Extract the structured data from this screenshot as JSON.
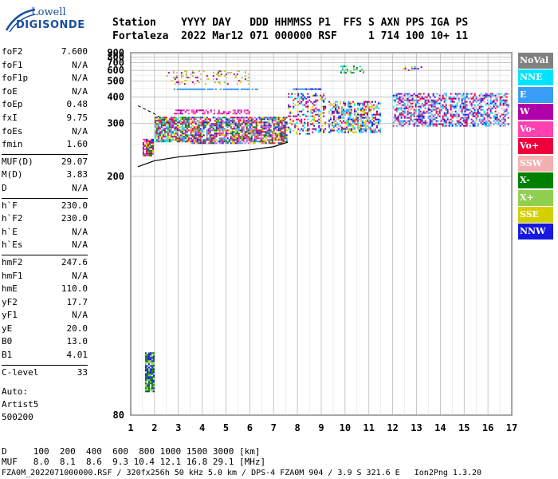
{
  "logo": {
    "line1": "Lowell",
    "line2": "DIGISONDE"
  },
  "header": {
    "cols": [
      "Station",
      "YYYY",
      "DAY",
      "DDD",
      "HHMMSS",
      "P1",
      "FFS",
      "S",
      "AXN",
      "PPS",
      "IGA",
      "PS"
    ],
    "vals": [
      "Fortaleza",
      "2022",
      "Mar12",
      "071",
      "000000",
      "RSF",
      "",
      "1",
      "714",
      "100",
      "10+",
      "11"
    ]
  },
  "params": {
    "group1": [
      {
        "k": "foF2",
        "v": "7.600"
      },
      {
        "k": "foF1",
        "v": "N/A"
      },
      {
        "k": "foF1p",
        "v": "N/A"
      },
      {
        "k": "foE",
        "v": "N/A"
      },
      {
        "k": "foEp",
        "v": "0.48"
      },
      {
        "k": "fxI",
        "v": "9.75"
      },
      {
        "k": "foEs",
        "v": "N/A"
      },
      {
        "k": "fmin",
        "v": "1.60"
      }
    ],
    "group2": [
      {
        "k": "MUF(D)",
        "v": "29.07"
      },
      {
        "k": "M(D)",
        "v": "3.83"
      },
      {
        "k": "D",
        "v": "N/A"
      }
    ],
    "group3": [
      {
        "k": "h`F",
        "v": "230.0"
      },
      {
        "k": "h`F2",
        "v": "230.0"
      },
      {
        "k": "h`E",
        "v": "N/A"
      },
      {
        "k": "h`Es",
        "v": "N/A"
      }
    ],
    "group4": [
      {
        "k": "hmF2",
        "v": "247.6"
      },
      {
        "k": "hmF1",
        "v": "N/A"
      },
      {
        "k": "hmE",
        "v": "110.0"
      },
      {
        "k": "yF2",
        "v": "17.7"
      },
      {
        "k": "yF1",
        "v": "N/A"
      },
      {
        "k": "yE",
        "v": "20.0"
      },
      {
        "k": "B0",
        "v": "13.0"
      },
      {
        "k": "B1",
        "v": "4.01"
      }
    ],
    "group5": [
      {
        "k": "C-level",
        "v": "33"
      }
    ]
  },
  "auto": {
    "line1": "Auto:",
    "line2": "Artist5",
    "line3": "500200"
  },
  "legend": [
    {
      "label": "NoVal",
      "color": "#808080"
    },
    {
      "label": "NNE",
      "color": "#00e5ff"
    },
    {
      "label": "E",
      "color": "#3a9df5"
    },
    {
      "label": "W",
      "color": "#b000a8"
    },
    {
      "label": "Vo-",
      "color": "#ff40b0"
    },
    {
      "label": "Vo+",
      "color": "#f0003a"
    },
    {
      "label": "SSW",
      "color": "#f4b0b0"
    },
    {
      "label": "X-",
      "color": "#008000"
    },
    {
      "label": "X+",
      "color": "#90d050"
    },
    {
      "label": "SSE",
      "color": "#d4d000"
    },
    {
      "label": "NNW",
      "color": "#1818e0"
    }
  ],
  "footer": {
    "d_row": "D     100  200  400  600  800 1000 1500 3000 [km]",
    "muf_row": "MUF   8.0  8.1  8.6  9.3 10.4 12.1 16.8 29.1 [MHz]",
    "file_row": "FZA0M_2022071000000.RSF / 320fx256h 50 kHz 5.0 km / DPS-4 FZA0M 904 / 3.9 S 321.6 E   Ion2Png 1.3.20"
  },
  "chart_data": {
    "type": "scatter",
    "x_ticks": [
      "1",
      "2",
      "3",
      "4",
      "5",
      "6",
      "7",
      "8",
      "9",
      "10",
      "11",
      "12",
      "13",
      "14",
      "15",
      "16",
      "17"
    ],
    "y_ticks": [
      "80",
      "200",
      "300",
      "400",
      "500",
      "600",
      "700",
      "800",
      "900"
    ],
    "xlim": [
      1,
      17
    ],
    "y_axis": "reciprocal",
    "ylim": [
      80,
      900
    ],
    "grid": true,
    "trace": {
      "x": [
        1.3,
        2.0,
        3.0,
        4.0,
        5.0,
        6.0,
        7.0,
        7.6
      ],
      "y": [
        213,
        222,
        228,
        232,
        236,
        240,
        246,
        255
      ]
    },
    "dashed": {
      "x": [
        1.3,
        2.0,
        2.6
      ],
      "y": [
        360,
        330,
        300
      ]
    },
    "clusters": [
      {
        "x": [
          1.5,
          2.0
        ],
        "y": [
          228,
          262
        ],
        "colors": [
          "#f0003a",
          "#b000a8",
          "#008000",
          "#d4d000",
          "#1818e0",
          "#ff40b0"
        ],
        "density": 0.9
      },
      {
        "x": [
          2.0,
          3.5
        ],
        "y": [
          255,
          320
        ],
        "colors": [
          "#3a9df5",
          "#00e5ff",
          "#f0003a",
          "#d4d000",
          "#008000",
          "#b000a8"
        ],
        "density": 0.8
      },
      {
        "x": [
          3.5,
          7.6
        ],
        "y": [
          250,
          320
        ],
        "colors": [
          "#3a9df5",
          "#d4d000",
          "#f0003a",
          "#008000",
          "#ff40b0",
          "#1818e0"
        ],
        "density": 0.75
      },
      {
        "x": [
          2.8,
          6.0
        ],
        "y": [
          330,
          345
        ],
        "colors": [
          "#b000a8",
          "#ff40b0"
        ],
        "density": 0.5
      },
      {
        "x": [
          2.5,
          6.0
        ],
        "y": [
          470,
          600
        ],
        "colors": [
          "#d4d000",
          "#b000a8",
          "#f4b0b0",
          "#90d050"
        ],
        "density": 0.22
      },
      {
        "x": [
          2.8,
          6.4
        ],
        "y": [
          443,
          447
        ],
        "colors": [
          "#3a9df5"
        ],
        "density": 0.85
      },
      {
        "x": [
          7.8,
          9.0
        ],
        "y": [
          443,
          448
        ],
        "colors": [
          "#1818e0",
          "#3a9df5"
        ],
        "density": 0.9
      },
      {
        "x": [
          7.6,
          9.2
        ],
        "y": [
          270,
          420
        ],
        "colors": [
          "#1818e0",
          "#b000a8",
          "#f0003a",
          "#00e5ff",
          "#d4d000"
        ],
        "density": 0.35
      },
      {
        "x": [
          9.3,
          11.5
        ],
        "y": [
          275,
          380
        ],
        "colors": [
          "#f4b0b0",
          "#00e5ff",
          "#3a9df5",
          "#1818e0",
          "#f0003a",
          "#d4d000"
        ],
        "density": 0.55
      },
      {
        "x": [
          9.8,
          10.8
        ],
        "y": [
          570,
          660
        ],
        "colors": [
          "#008000",
          "#00e5ff",
          "#3a9df5",
          "#90d050"
        ],
        "density": 0.35
      },
      {
        "x": [
          12.3,
          13.3
        ],
        "y": [
          590,
          650
        ],
        "colors": [
          "#d4d000",
          "#3a9df5",
          "#b000a8"
        ],
        "density": 0.18
      },
      {
        "x": [
          12.0,
          16.9
        ],
        "y": [
          290,
          420
        ],
        "colors": [
          "#1818e0",
          "#3a9df5",
          "#f0003a",
          "#b000a8",
          "#00e5ff",
          "#f4b0b0"
        ],
        "density": 0.55
      },
      {
        "x": [
          1.6,
          2.0
        ],
        "y": [
          85,
          95
        ],
        "colors": [
          "#008000",
          "#1818e0",
          "#90d050"
        ],
        "density": 0.9
      }
    ]
  }
}
